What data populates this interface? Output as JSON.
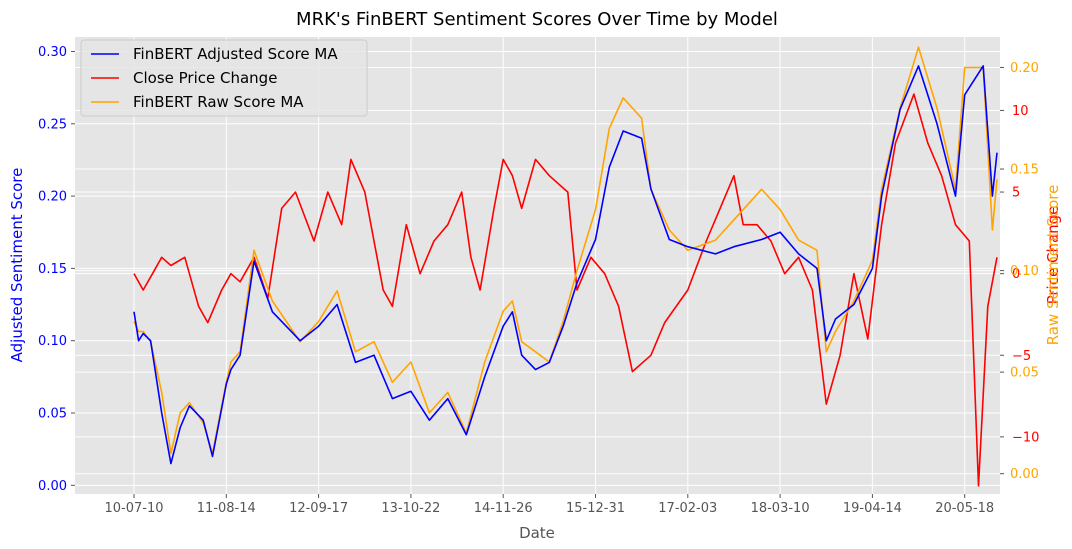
{
  "chart_data": {
    "type": "line",
    "title": "MRK's FinBERT Sentiment Scores Over Time by Model",
    "xlabel": "Date",
    "x_ticks": [
      "10-07-10",
      "11-08-14",
      "12-09-17",
      "13-10-22",
      "14-11-26",
      "15-12-31",
      "17-02-03",
      "18-03-10",
      "19-04-14",
      "20-05-18"
    ],
    "y_left": {
      "label": "Adjusted Sentiment Score",
      "range": [
        -0.006,
        0.31
      ],
      "ticks": [
        "0.00",
        "0.05",
        "0.10",
        "0.15",
        "0.20",
        "0.25",
        "0.30"
      ],
      "color": "#0000ff"
    },
    "y_right_price": {
      "label": "Price Change",
      "range": [
        -13.5,
        14.5
      ],
      "ticks": [
        "−10",
        "−5",
        "0",
        "5",
        "10"
      ],
      "color": "#ff0000"
    },
    "y_right_raw": {
      "label": "Raw Sentiment Score",
      "range": [
        -0.01,
        0.215
      ],
      "ticks": [
        "0.00",
        "0.05",
        "0.10",
        "0.15",
        "0.20"
      ],
      "color": "#ffa500"
    },
    "legend_position": "upper-left",
    "grid": true,
    "series": [
      {
        "name": "FinBERT Adjusted Score MA",
        "color": "#0000ff",
        "axis": "left",
        "x": [
          0,
          0.05,
          0.1,
          0.18,
          0.3,
          0.4,
          0.5,
          0.6,
          0.75,
          0.85,
          1.0,
          1.05,
          1.15,
          1.3,
          1.5,
          1.8,
          2.0,
          2.2,
          2.4,
          2.6,
          2.8,
          3.0,
          3.2,
          3.4,
          3.6,
          3.8,
          4.0,
          4.1,
          4.2,
          4.35,
          4.5,
          4.65,
          4.8,
          5.0,
          5.15,
          5.3,
          5.5,
          5.6,
          5.8,
          6.0,
          6.3,
          6.5,
          6.8,
          7.0,
          7.2,
          7.4,
          7.5,
          7.6,
          7.8,
          8.0,
          8.1,
          8.3,
          8.5,
          8.7,
          8.9,
          9.0,
          9.2,
          9.3,
          9.35
        ],
        "y": [
          0.12,
          0.1,
          0.105,
          0.1,
          0.05,
          0.015,
          0.04,
          0.055,
          0.045,
          0.02,
          0.07,
          0.08,
          0.09,
          0.155,
          0.12,
          0.1,
          0.11,
          0.125,
          0.085,
          0.09,
          0.06,
          0.065,
          0.045,
          0.06,
          0.035,
          0.075,
          0.11,
          0.12,
          0.09,
          0.08,
          0.085,
          0.11,
          0.14,
          0.17,
          0.22,
          0.245,
          0.24,
          0.205,
          0.17,
          0.165,
          0.16,
          0.165,
          0.17,
          0.175,
          0.16,
          0.15,
          0.1,
          0.115,
          0.125,
          0.15,
          0.2,
          0.26,
          0.29,
          0.25,
          0.2,
          0.27,
          0.29,
          0.2,
          0.23
        ]
      },
      {
        "name": "Close Price Change",
        "color": "#ff0000",
        "axis": "right_price",
        "x": [
          0,
          0.1,
          0.2,
          0.3,
          0.4,
          0.55,
          0.7,
          0.8,
          0.95,
          1.05,
          1.15,
          1.3,
          1.45,
          1.6,
          1.75,
          1.95,
          2.1,
          2.25,
          2.35,
          2.5,
          2.6,
          2.7,
          2.8,
          2.95,
          3.1,
          3.25,
          3.4,
          3.55,
          3.65,
          3.75,
          3.9,
          4.0,
          4.1,
          4.2,
          4.35,
          4.5,
          4.7,
          4.8,
          4.95,
          5.1,
          5.25,
          5.4,
          5.6,
          5.75,
          6.0,
          6.2,
          6.35,
          6.5,
          6.6,
          6.75,
          6.9,
          7.05,
          7.2,
          7.35,
          7.5,
          7.65,
          7.8,
          7.95,
          8.1,
          8.25,
          8.45,
          8.6,
          8.75,
          8.9,
          9.05,
          9.15,
          9.25,
          9.35
        ],
        "y": [
          0,
          -1,
          0,
          1,
          0.5,
          1,
          -2,
          -3,
          -1,
          0,
          -0.5,
          1,
          -1.5,
          4,
          5,
          2,
          5,
          3,
          7,
          5,
          2,
          -1,
          -2,
          3,
          0,
          2,
          3,
          5,
          1,
          -1,
          4,
          7,
          6,
          4,
          7,
          6,
          5,
          -1,
          1,
          0,
          -2,
          -6,
          -5,
          -3,
          -1,
          2,
          4,
          6,
          3,
          3,
          2,
          0,
          1,
          -1,
          -8,
          -5,
          0,
          -4,
          3,
          8,
          11,
          8,
          6,
          3,
          2,
          -13,
          -2,
          1
        ]
      },
      {
        "name": "FinBERT Raw Score MA",
        "color": "#ffa500",
        "axis": "right_raw",
        "x": [
          0,
          0.05,
          0.1,
          0.18,
          0.3,
          0.4,
          0.5,
          0.6,
          0.75,
          0.85,
          1.0,
          1.05,
          1.15,
          1.3,
          1.5,
          1.8,
          2.0,
          2.2,
          2.4,
          2.6,
          2.8,
          3.0,
          3.2,
          3.4,
          3.6,
          3.8,
          4.0,
          4.1,
          4.2,
          4.35,
          4.5,
          4.65,
          4.8,
          5.0,
          5.15,
          5.3,
          5.5,
          5.6,
          5.8,
          6.0,
          6.3,
          6.5,
          6.8,
          7.0,
          7.2,
          7.4,
          7.5,
          7.6,
          7.8,
          8.0,
          8.1,
          8.3,
          8.5,
          8.7,
          8.9,
          9.0,
          9.2,
          9.3,
          9.35
        ],
        "y": [
          0.075,
          0.07,
          0.07,
          0.065,
          0.04,
          0.01,
          0.03,
          0.035,
          0.025,
          0.01,
          0.045,
          0.055,
          0.06,
          0.11,
          0.085,
          0.065,
          0.075,
          0.09,
          0.06,
          0.065,
          0.045,
          0.055,
          0.03,
          0.04,
          0.02,
          0.055,
          0.08,
          0.085,
          0.065,
          0.06,
          0.055,
          0.075,
          0.1,
          0.13,
          0.17,
          0.185,
          0.175,
          0.14,
          0.12,
          0.11,
          0.115,
          0.125,
          0.14,
          0.13,
          0.115,
          0.11,
          0.06,
          0.07,
          0.085,
          0.105,
          0.14,
          0.18,
          0.21,
          0.18,
          0.14,
          0.2,
          0.2,
          0.12,
          0.145
        ]
      }
    ]
  }
}
